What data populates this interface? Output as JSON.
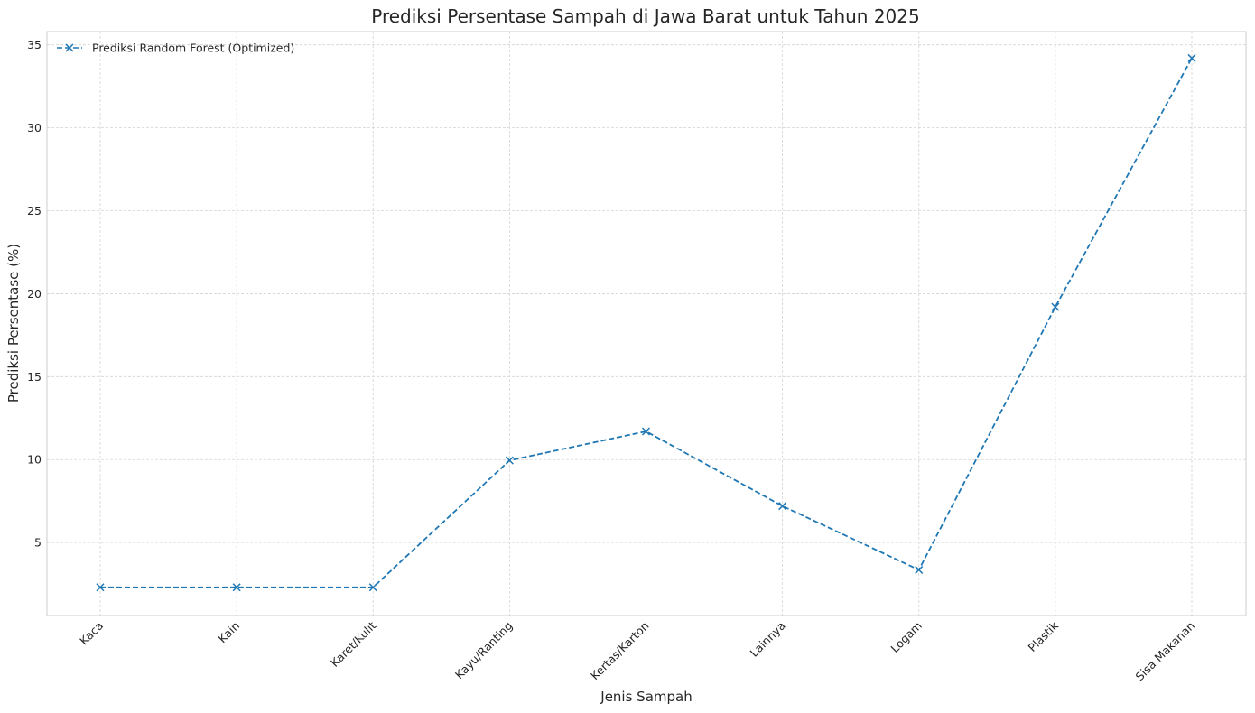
{
  "chart_data": {
    "type": "line",
    "title": "Prediksi Persentase Sampah di Jawa Barat untuk Tahun 2025",
    "xlabel": "Jenis Sampah",
    "ylabel": "Prediksi Persentase (%)",
    "categories": [
      "Kaca",
      "Kain",
      "Karet/Kulit",
      "Kayu/Ranting",
      "Kertas/Karton",
      "Lainnya",
      "Logam",
      "Plastik",
      "Sisa Makanan"
    ],
    "series": [
      {
        "name": "Prediksi Random Forest (Optimized)",
        "values": [
          2.3,
          2.3,
          2.3,
          9.95,
          11.7,
          7.2,
          3.35,
          19.2,
          34.2
        ],
        "color": "#1f77b4",
        "line_style": "dashed",
        "marker": "x"
      }
    ],
    "yticks": [
      5,
      10,
      15,
      20,
      25,
      30,
      35
    ],
    "ylim": [
      0.6,
      35.8
    ],
    "grid": true,
    "legend_position": "top-left"
  }
}
